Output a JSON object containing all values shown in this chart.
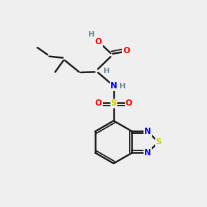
{
  "background_color": "#efefef",
  "bond_color": "#1a1a1a",
  "bond_width": 1.8,
  "atom_colors": {
    "O": "#ff0000",
    "N": "#0000ff",
    "S_ring": "#cccc00",
    "S_sulfonyl": "#cccc00",
    "H": "#6b8e9f",
    "C": "#1a1a1a"
  }
}
